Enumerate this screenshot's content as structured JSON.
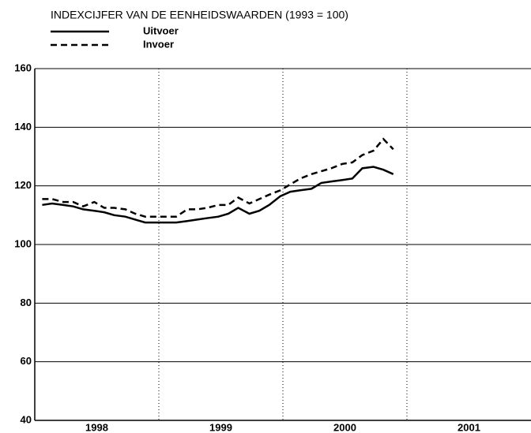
{
  "chart_data": {
    "type": "line",
    "title": "INDEXCIJFER VAN DE EENHEIDSWAARDEN (1993 = 100)",
    "x": [
      1998.06,
      1998.14,
      1998.23,
      1998.31,
      1998.39,
      1998.48,
      1998.56,
      1998.64,
      1998.73,
      1998.81,
      1998.89,
      1998.98,
      1999.06,
      1999.14,
      1999.23,
      1999.31,
      1999.39,
      1999.48,
      1999.56,
      1999.64,
      1999.73,
      1999.81,
      1999.89,
      1999.98,
      2000.06,
      2000.14,
      2000.23,
      2000.31,
      2000.39,
      2000.48,
      2000.56,
      2000.64,
      2000.73,
      2000.81,
      2000.89
    ],
    "series": [
      {
        "name": "Uitvoer",
        "color": "#000000",
        "dash": "solid",
        "values": [
          113.5,
          114,
          113.5,
          113,
          112,
          111.5,
          111,
          110,
          109.5,
          108.5,
          107.5,
          107.5,
          107.5,
          107.5,
          108,
          108.5,
          109,
          109.5,
          110.5,
          112.5,
          110.5,
          111.5,
          113.5,
          116.5,
          118,
          118.5,
          119,
          121,
          121.5,
          122,
          122.5,
          126,
          126.5,
          125.5,
          124
        ]
      },
      {
        "name": "Invoer",
        "color": "#000000",
        "dash": "dashed",
        "values": [
          115.5,
          115.5,
          114.5,
          114.5,
          113,
          114.5,
          112.5,
          112.5,
          112,
          110.5,
          109.5,
          109.5,
          109.5,
          109.5,
          112,
          112,
          112.5,
          113.5,
          113.5,
          116,
          114,
          115.5,
          117,
          118.5,
          120.5,
          122.5,
          124,
          125,
          126,
          127.5,
          128,
          130.5,
          132,
          136,
          132.5
        ]
      }
    ],
    "xlim": [
      1998,
      2002
    ],
    "xticks": [
      {
        "value": 1998.5,
        "label": "1998"
      },
      {
        "value": 1999.5,
        "label": "1999"
      },
      {
        "value": 2000.5,
        "label": "2000"
      },
      {
        "value": 2001.5,
        "label": "2001"
      }
    ],
    "xgrid": [
      1999,
      2000,
      2001
    ],
    "ylim": [
      40,
      160
    ],
    "yticks": [
      40,
      60,
      80,
      100,
      120,
      140,
      160
    ],
    "grid": true,
    "legend": "top-left"
  }
}
